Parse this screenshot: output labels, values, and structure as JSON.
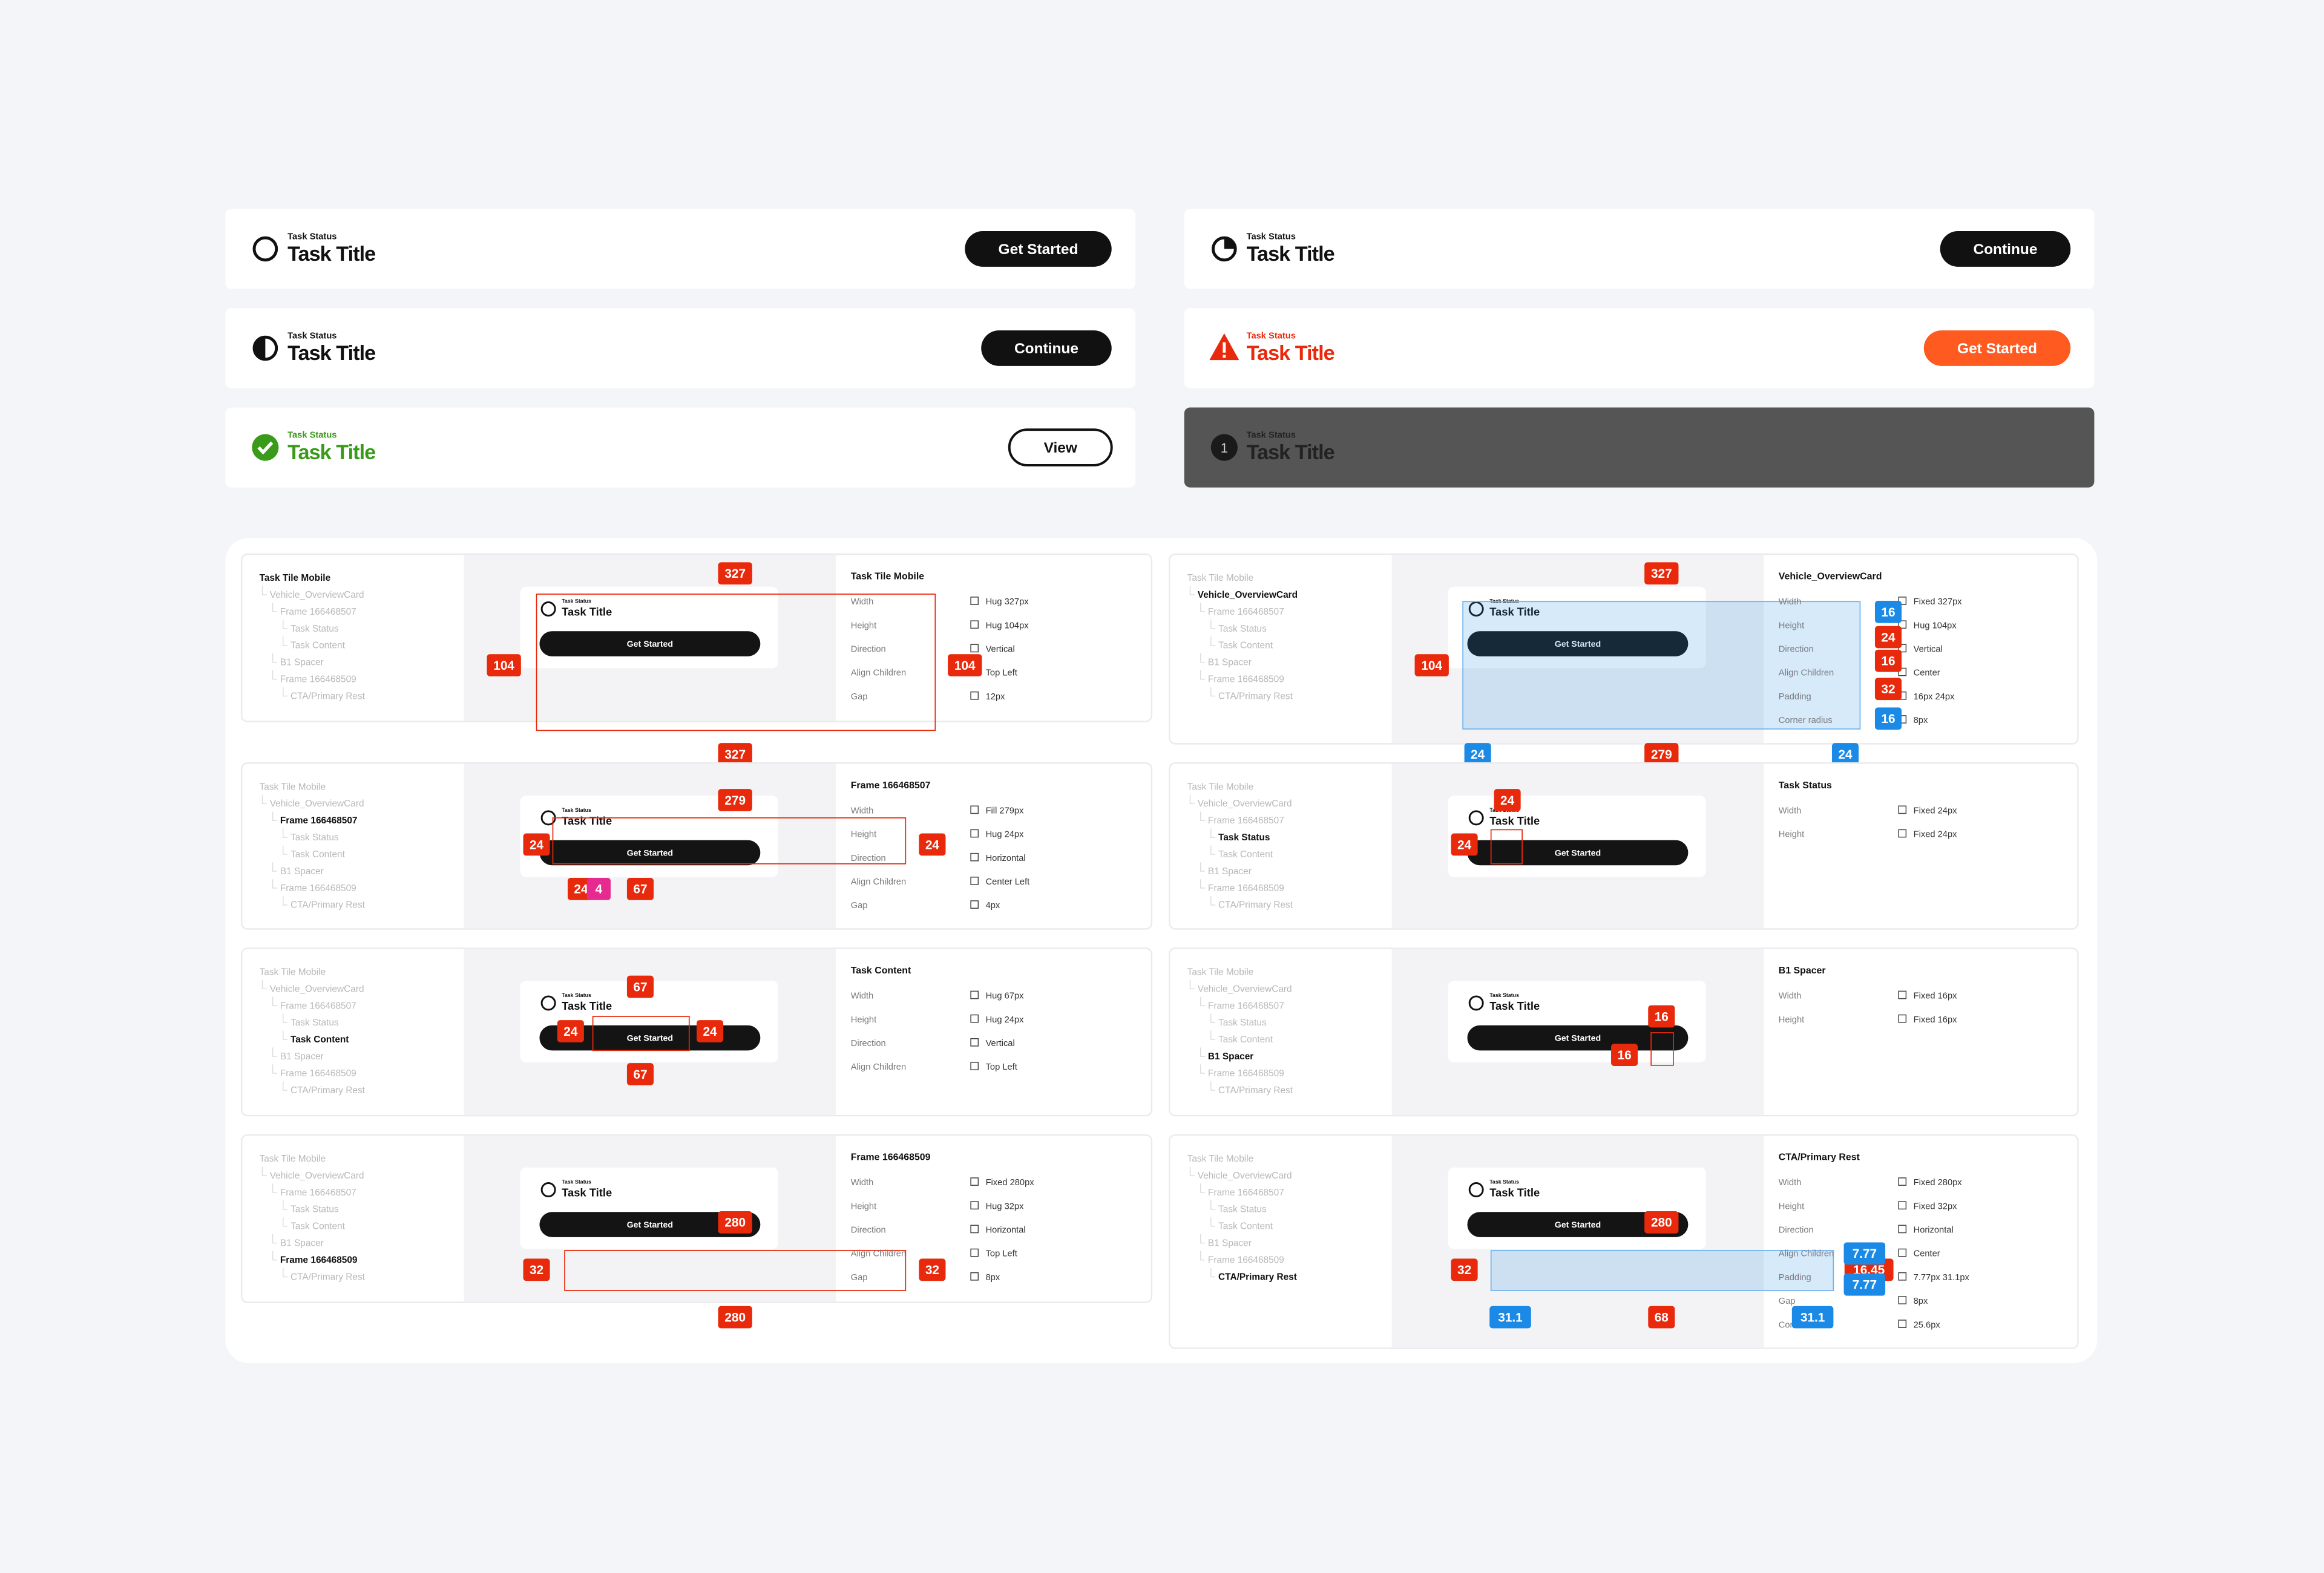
{
  "tiles": [
    {
      "status": "Task Status",
      "title": "Task Title",
      "button": "Get Started"
    },
    {
      "status": "Task Status",
      "title": "Task Title",
      "button": "Continue"
    },
    {
      "status": "Task Status",
      "title": "Task Title",
      "button": "View"
    },
    {
      "status": "Task Status",
      "title": "Task Title",
      "button": "Continue"
    },
    {
      "status": "Task Status",
      "title": "Task Title",
      "button": "Get Started"
    },
    {
      "status": "Task Status",
      "title": "Task Title",
      "number": "1"
    }
  ],
  "tree": [
    "Task Tile Mobile",
    "Vehicle_OverviewCard",
    "Frame 166468507",
    "Task Status",
    "Task Content",
    "B1 Spacer",
    "Frame 166468509",
    "CTA/Primary Rest"
  ],
  "preview": {
    "status": "Task Status",
    "title": "Task Title",
    "button": "Get Started"
  },
  "specs": [
    {
      "title": "Task Tile Mobile",
      "rows": [
        {
          "label": "Width",
          "value": "Hug 327px"
        },
        {
          "label": "Height",
          "value": "Hug 104px"
        },
        {
          "label": "Direction",
          "value": "Vertical"
        },
        {
          "label": "Align Children",
          "value": "Top Left"
        },
        {
          "label": "Gap",
          "value": "12px"
        }
      ],
      "badges": [
        {
          "text": "327",
          "color": "#e8290b"
        },
        {
          "text": "104",
          "color": "#e8290b"
        },
        {
          "text": "104",
          "color": "#e8290b"
        },
        {
          "text": "327",
          "color": "#e8290b"
        }
      ]
    },
    {
      "title": "Vehicle_OverviewCard",
      "rows": [
        {
          "label": "Width",
          "value": "Fixed 327px"
        },
        {
          "label": "Height",
          "value": "Hug 104px"
        },
        {
          "label": "Direction",
          "value": "Vertical"
        },
        {
          "label": "Align Children",
          "value": "Center"
        },
        {
          "label": "Padding",
          "value": "16px 24px"
        },
        {
          "label": "Corner radius",
          "value": "8px"
        }
      ],
      "badges": [
        {
          "text": "327",
          "color": "#e8290b"
        },
        {
          "text": "16",
          "color": "#1a8ae6"
        },
        {
          "text": "24",
          "color": "#e8290b"
        },
        {
          "text": "16",
          "color": "#e8290b"
        },
        {
          "text": "32",
          "color": "#e8290b"
        },
        {
          "text": "16",
          "color": "#1a8ae6"
        },
        {
          "text": "104",
          "color": "#e8290b"
        },
        {
          "text": "24",
          "color": "#1a8ae6"
        },
        {
          "text": "279",
          "color": "#e8290b"
        },
        {
          "text": "24",
          "color": "#1a8ae6"
        }
      ]
    },
    {
      "title": "Frame 166468507",
      "rows": [
        {
          "label": "Width",
          "value": "Fill 279px"
        },
        {
          "label": "Height",
          "value": "Hug 24px"
        },
        {
          "label": "Direction",
          "value": "Horizontal"
        },
        {
          "label": "Align Children",
          "value": "Center Left"
        },
        {
          "label": "Gap",
          "value": "4px"
        }
      ],
      "badges": [
        {
          "text": "279",
          "color": "#e8290b"
        },
        {
          "text": "24",
          "color": "#e8290b"
        },
        {
          "text": "24",
          "color": "#e8290b"
        },
        {
          "text": "24",
          "color": "#e8290b"
        },
        {
          "text": "4",
          "color": "#e62a8f"
        },
        {
          "text": "67",
          "color": "#e8290b"
        }
      ]
    },
    {
      "title": "Task Status",
      "rows": [
        {
          "label": "Width",
          "value": "Fixed 24px"
        },
        {
          "label": "Height",
          "value": "Fixed 24px"
        }
      ],
      "badges": [
        {
          "text": "24",
          "color": "#e8290b"
        },
        {
          "text": "24",
          "color": "#e8290b"
        }
      ]
    },
    {
      "title": "Task Content",
      "rows": [
        {
          "label": "Width",
          "value": "Hug 67px"
        },
        {
          "label": "Height",
          "value": "Hug 24px"
        },
        {
          "label": "Direction",
          "value": "Vertical"
        },
        {
          "label": "Align Children",
          "value": "Top Left"
        }
      ],
      "badges": [
        {
          "text": "67",
          "color": "#e8290b"
        },
        {
          "text": "24",
          "color": "#e8290b"
        },
        {
          "text": "24",
          "color": "#e8290b"
        },
        {
          "text": "67",
          "color": "#e8290b"
        }
      ]
    },
    {
      "title": "B1 Spacer",
      "rows": [
        {
          "label": "Width",
          "value": "Fixed 16px"
        },
        {
          "label": "Height",
          "value": "Fixed 16px"
        }
      ],
      "badges": [
        {
          "text": "16",
          "color": "#e8290b"
        },
        {
          "text": "16",
          "color": "#e8290b"
        }
      ]
    },
    {
      "title": "Frame 166468509",
      "rows": [
        {
          "label": "Width",
          "value": "Fixed 280px"
        },
        {
          "label": "Height",
          "value": "Hug 32px"
        },
        {
          "label": "Direction",
          "value": "Horizontal"
        },
        {
          "label": "Align Children",
          "value": "Top Left"
        },
        {
          "label": "Gap",
          "value": "8px"
        }
      ],
      "badges": [
        {
          "text": "280",
          "color": "#e8290b"
        },
        {
          "text": "32",
          "color": "#e8290b"
        },
        {
          "text": "32",
          "color": "#e8290b"
        },
        {
          "text": "280",
          "color": "#e8290b"
        }
      ]
    },
    {
      "title": "CTA/Primary Rest",
      "rows": [
        {
          "label": "Width",
          "value": "Fixed 280px"
        },
        {
          "label": "Height",
          "value": "Fixed 32px"
        },
        {
          "label": "Direction",
          "value": "Horizontal"
        },
        {
          "label": "Align Children",
          "value": "Center"
        },
        {
          "label": "Padding",
          "value": "7.77px 31.1px"
        },
        {
          "label": "Gap",
          "value": "8px"
        },
        {
          "label": "Corner radius",
          "value": "25.6px"
        }
      ],
      "badges": [
        {
          "text": "280",
          "color": "#e8290b"
        },
        {
          "text": "32",
          "color": "#e8290b"
        },
        {
          "text": "16.45",
          "color": "#e8290b"
        },
        {
          "text": "7.77",
          "color": "#1a8ae6"
        },
        {
          "text": "7.77",
          "color": "#1a8ae6"
        },
        {
          "text": "31.1",
          "color": "#1a8ae6"
        },
        {
          "text": "68",
          "color": "#e8290b"
        },
        {
          "text": "31.1",
          "color": "#1a8ae6"
        }
      ]
    }
  ]
}
